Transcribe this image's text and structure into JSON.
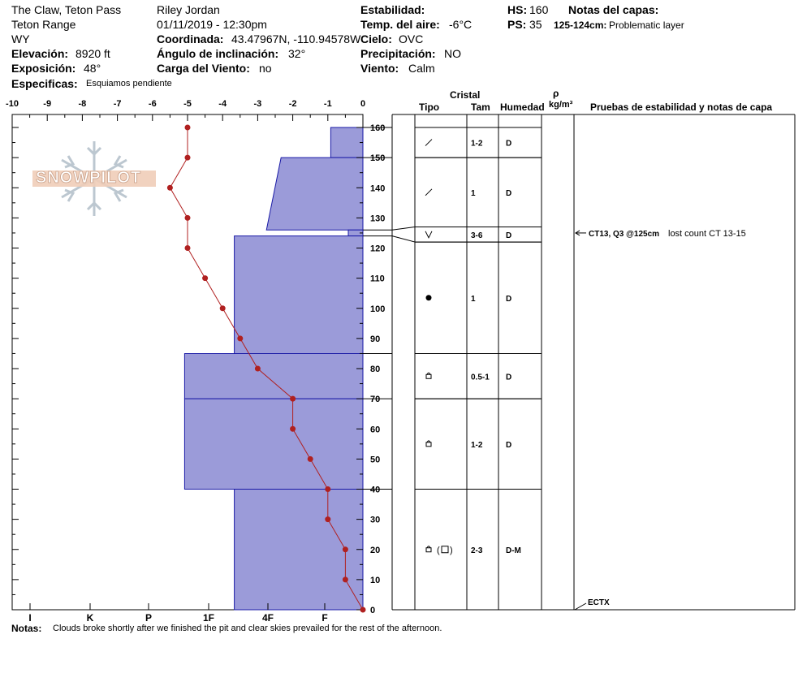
{
  "header": {
    "location": "The Claw, Teton Pass",
    "range": "Teton Range",
    "state": "WY",
    "elevation_label": "Elevación:",
    "elevation_value": "8920 ft",
    "aspect_label": "Exposición:",
    "aspect_value": "48°",
    "specifics_label": "Especificas:",
    "specifics_value": "Esquiamos pendiente",
    "observer": "Riley Jordan",
    "datetime": "01/11/2019 - 12:30pm",
    "coord_label": "Coordinada:",
    "coord_value": "43.47967N, -110.94578W",
    "slope_label": "Ángulo de inclinación:",
    "slope_value": "32°",
    "wind_load_label": "Carga del Viento:",
    "wind_load_value": "no",
    "stability_label": "Estabilidad:",
    "air_temp_label": "Temp. del aire:",
    "air_temp_value": "-6°C",
    "sky_label": "Cielo:",
    "sky_value": "OVC",
    "precip_label": "Precipitación:",
    "precip_value": "NO",
    "wind_label": "Viento:",
    "wind_value": "Calm",
    "hs_label": "HS:",
    "hs_value": "160",
    "ps_label": "PS:",
    "ps_value": "35",
    "layer_notes_label": "Notas del capas:",
    "layer_note_depth": "125-124cm:",
    "layer_note_text": "Problematic layer"
  },
  "table_headers": {
    "crystal": "Cristal",
    "type": "Tipo",
    "size": "Tam",
    "moisture": "Humedad",
    "rho": "ρ",
    "density_unit": "kg/m³",
    "tests": "Pruebas de estabilidad y notas de capa"
  },
  "notes_label": "Notas:",
  "notes_text": "Clouds broke shortly after we finished the pit and clear skies prevailed for the rest of the afternoon.",
  "logo_text": "SNOWPILOT",
  "colors": {
    "hardness_fill": "#9b9bd9",
    "hardness_stroke": "#1a1aa6",
    "temp_line": "#b02020"
  },
  "chart_data": {
    "type": "line",
    "title": "",
    "temp_axis": {
      "ticks": [
        "-10",
        "-9",
        "-8",
        "-7",
        "-6",
        "-5",
        "-4",
        "-3",
        "-2",
        "-1",
        "0"
      ],
      "range": [
        -10,
        0
      ]
    },
    "height_axis": {
      "range": [
        0,
        160
      ],
      "ticks": [
        "0",
        "10",
        "20",
        "30",
        "40",
        "50",
        "60",
        "70",
        "80",
        "90",
        "100",
        "110",
        "120",
        "130",
        "140",
        "150",
        "160"
      ]
    },
    "hardness_axis": {
      "labels": [
        "I",
        "K",
        "P",
        "1F",
        "4F",
        "F"
      ]
    },
    "temperature_profile": {
      "height": [
        160,
        150,
        140,
        130,
        120,
        110,
        100,
        90,
        80,
        70,
        60,
        50,
        40,
        30,
        20,
        10,
        0
      ],
      "temp": [
        -5,
        -5,
        -5.5,
        -5,
        -5,
        -4.5,
        -4,
        -3.5,
        -3,
        -2,
        -2,
        -1.5,
        -1,
        -1,
        -0.5,
        -0.5,
        0
      ]
    },
    "hardness_layers": [
      {
        "top": 160,
        "bottom": 150,
        "hardness": 1.1,
        "hardness_bottom": 1.1
      },
      {
        "top": 150,
        "bottom": 126,
        "hardness": 2.8,
        "hardness_bottom": 3.3
      },
      {
        "top": 126,
        "bottom": 124,
        "hardness": 0.5,
        "hardness_bottom": 0.5
      },
      {
        "top": 124,
        "bottom": 85,
        "hardness": 4.4,
        "hardness_bottom": 4.4
      },
      {
        "top": 85,
        "bottom": 70,
        "hardness": 6.1,
        "hardness_bottom": 6.1
      },
      {
        "top": 70,
        "bottom": 40,
        "hardness": 6.1,
        "hardness_bottom": 6.1
      },
      {
        "top": 40,
        "bottom": 0,
        "hardness": 4.4,
        "hardness_bottom": 4.4
      }
    ],
    "crystal_layers": [
      {
        "top": 160,
        "bottom": 150,
        "type": "/",
        "size": "1-2",
        "moisture": "D"
      },
      {
        "top": 150,
        "bottom": 127,
        "type": "/",
        "size": "1",
        "moisture": "D"
      },
      {
        "top": 127,
        "bottom": 122,
        "type": "V",
        "size": "3-6",
        "moisture": "D"
      },
      {
        "top": 122,
        "bottom": 85,
        "type": "●",
        "size": "1",
        "moisture": "D"
      },
      {
        "top": 85,
        "bottom": 70,
        "type": "fc",
        "size": "0.5-1",
        "moisture": "D"
      },
      {
        "top": 70,
        "bottom": 40,
        "type": "fc",
        "size": "1-2",
        "moisture": "D"
      },
      {
        "top": 40,
        "bottom": 0,
        "type": "fc-sq",
        "size": "2-3",
        "moisture": "D-M"
      }
    ],
    "stability_tests": [
      {
        "height": 125,
        "label": "CT13, Q3 @125cm",
        "note": "lost count CT 13-15"
      },
      {
        "height": 0,
        "label": "ECTX",
        "note": ""
      }
    ]
  }
}
